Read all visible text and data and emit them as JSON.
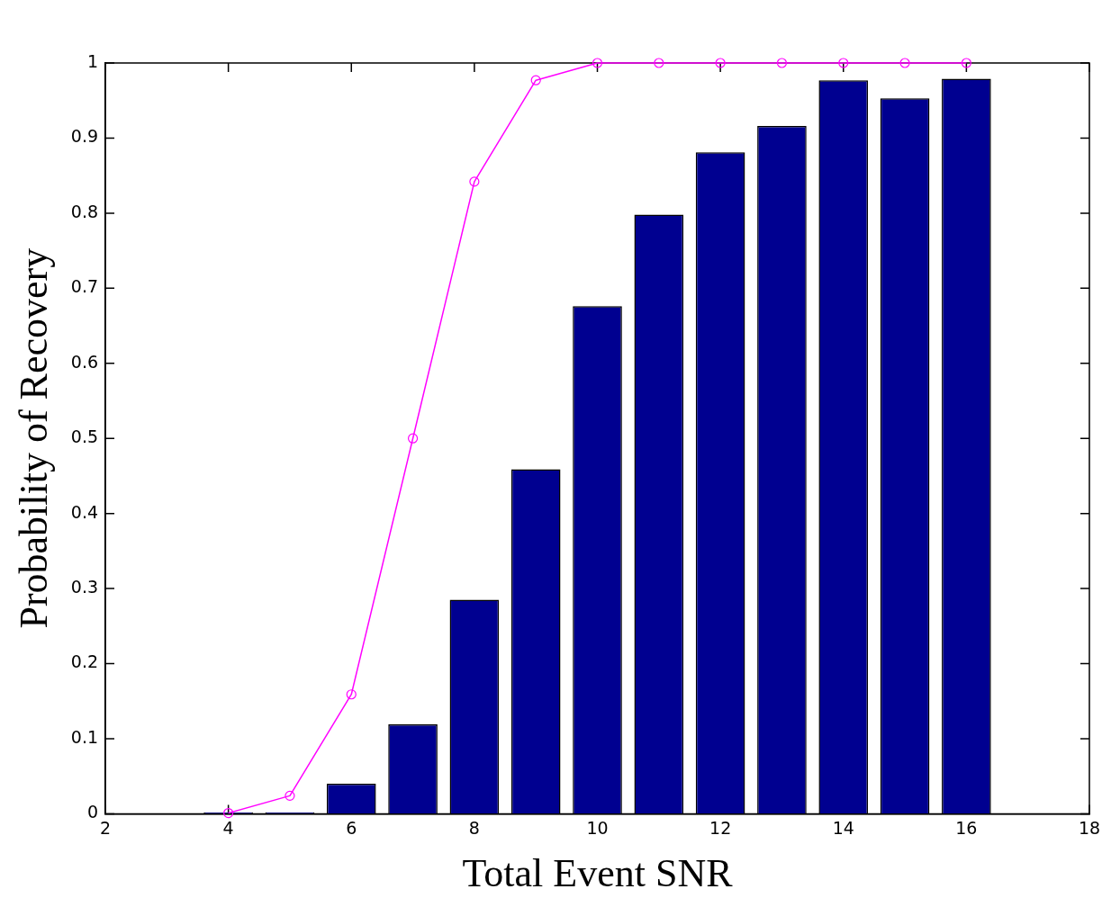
{
  "chart_data": {
    "type": "bar",
    "xlabel": "Total Event SNR",
    "ylabel": "Probability of Recovery",
    "x": [
      4,
      5,
      6,
      7,
      8,
      9,
      10,
      11,
      12,
      13,
      14,
      15,
      16
    ],
    "series": [
      {
        "color": "#000090",
        "values": [
          0.002,
          0.002,
          0.04,
          0.119,
          0.285,
          0.459,
          0.676,
          0.798,
          0.881,
          0.916,
          0.977,
          0.953,
          0.979
        ]
      },
      {
        "type": "line",
        "color": "#ff00ff",
        "marker": "circle",
        "line_style": "solid",
        "values": [
          0.001,
          0.024,
          0.159,
          0.5,
          0.842,
          0.977,
          1,
          1,
          1,
          1,
          1,
          1,
          1
        ]
      }
    ],
    "xlim": [
      2,
      18
    ],
    "xticks": [
      2,
      4,
      6,
      8,
      10,
      12,
      14,
      16,
      18
    ],
    "ylim": [
      0,
      1
    ],
    "yticks": [
      0,
      0.1,
      0.2,
      0.3,
      0.4,
      0.5,
      0.6,
      0.7,
      0.8,
      0.9,
      1
    ],
    "grid": false,
    "legend": false
  }
}
